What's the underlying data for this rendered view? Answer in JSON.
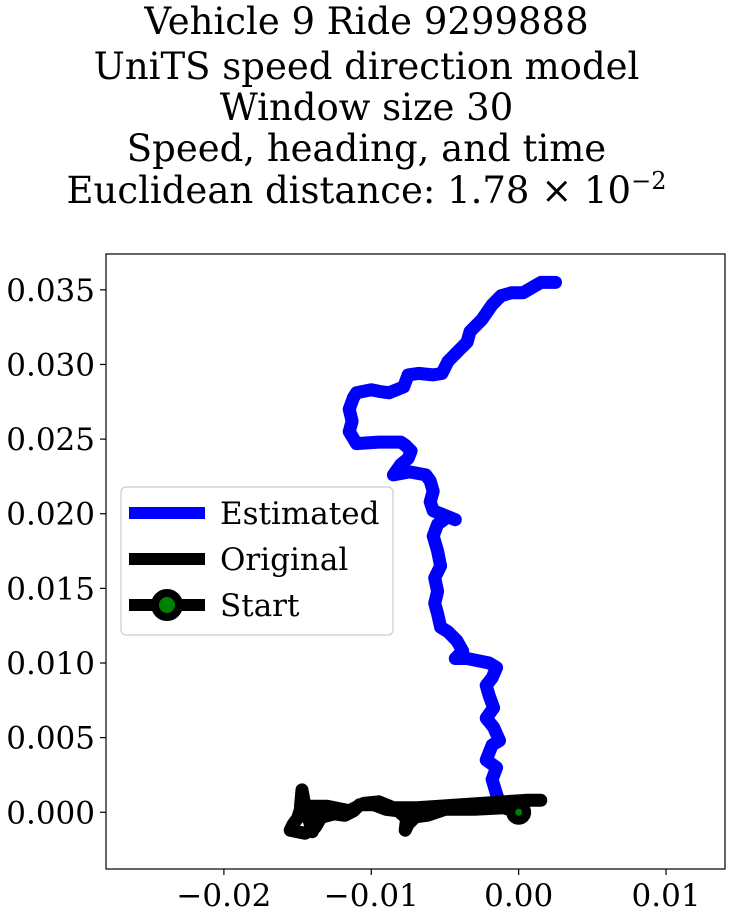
{
  "chart_data": {
    "type": "line",
    "title_lines": [
      "Vehicle 9 Ride 9299888",
      "UniTS speed direction model",
      "Window size 30",
      "Speed, heading, and time",
      "Euclidean distance: 1.78 × 10"
    ],
    "title_exponent": "−2",
    "xlim": [
      -0.028,
      0.014
    ],
    "ylim": [
      -0.0038,
      0.0374
    ],
    "x_ticks": [
      -0.02,
      -0.01,
      0.0,
      0.01
    ],
    "x_tick_labels": [
      "−0.02",
      "−0.01",
      "0.00",
      "0.01"
    ],
    "y_ticks": [
      0.0,
      0.005,
      0.01,
      0.015,
      0.02,
      0.025,
      0.03,
      0.035
    ],
    "y_tick_labels": [
      "0.000",
      "0.005",
      "0.010",
      "0.015",
      "0.020",
      "0.025",
      "0.030",
      "0.035"
    ],
    "grid": false,
    "legend_position": "center-left",
    "legend": [
      "Estimated",
      "Original",
      "Start"
    ],
    "colors": {
      "estimated": "#0000ff",
      "original": "#000000",
      "start_marker": "#008000"
    },
    "series": [
      {
        "name": "Estimated",
        "points": [
          [
            0.0,
            0.0
          ],
          [
            -0.0012,
            0.0004
          ],
          [
            -0.0015,
            0.0012
          ],
          [
            -0.0018,
            0.0022
          ],
          [
            -0.0015,
            0.003
          ],
          [
            -0.0022,
            0.0035
          ],
          [
            -0.0018,
            0.0045
          ],
          [
            -0.0013,
            0.0048
          ],
          [
            -0.0017,
            0.0057
          ],
          [
            -0.0022,
            0.0063
          ],
          [
            -0.0017,
            0.007
          ],
          [
            -0.002,
            0.0078
          ],
          [
            -0.0022,
            0.0085
          ],
          [
            -0.0018,
            0.009
          ],
          [
            -0.0015,
            0.0097
          ],
          [
            -0.002,
            0.01
          ],
          [
            -0.0035,
            0.0103
          ],
          [
            -0.0043,
            0.0103
          ],
          [
            -0.0038,
            0.0108
          ],
          [
            -0.0042,
            0.0115
          ],
          [
            -0.0048,
            0.0121
          ],
          [
            -0.0053,
            0.0124
          ],
          [
            -0.0055,
            0.0133
          ],
          [
            -0.0057,
            0.014
          ],
          [
            -0.0055,
            0.0148
          ],
          [
            -0.0057,
            0.0157
          ],
          [
            -0.0053,
            0.0165
          ],
          [
            -0.0055,
            0.0175
          ],
          [
            -0.0058,
            0.0185
          ],
          [
            -0.0055,
            0.0193
          ],
          [
            -0.0048,
            0.0198
          ],
          [
            -0.0043,
            0.0196
          ],
          [
            -0.0058,
            0.0202
          ],
          [
            -0.006,
            0.0208
          ],
          [
            -0.0058,
            0.0215
          ],
          [
            -0.006,
            0.0222
          ],
          [
            -0.0063,
            0.0226
          ],
          [
            -0.0074,
            0.0228
          ],
          [
            -0.0085,
            0.0226
          ],
          [
            -0.008,
            0.0233
          ],
          [
            -0.0075,
            0.0237
          ],
          [
            -0.0073,
            0.0242
          ],
          [
            -0.0077,
            0.0246
          ],
          [
            -0.008,
            0.0248
          ],
          [
            -0.0095,
            0.0248
          ],
          [
            -0.011,
            0.0247
          ],
          [
            -0.0115,
            0.0255
          ],
          [
            -0.0113,
            0.0262
          ],
          [
            -0.0115,
            0.027
          ],
          [
            -0.0112,
            0.0278
          ],
          [
            -0.011,
            0.0281
          ],
          [
            -0.01,
            0.0283
          ],
          [
            -0.0095,
            0.0282
          ],
          [
            -0.0088,
            0.0281
          ],
          [
            -0.0078,
            0.0285
          ],
          [
            -0.0075,
            0.0293
          ],
          [
            -0.0068,
            0.0294
          ],
          [
            -0.0058,
            0.0293
          ],
          [
            -0.0052,
            0.0294
          ],
          [
            -0.0048,
            0.0302
          ],
          [
            -0.004,
            0.031
          ],
          [
            -0.0035,
            0.0315
          ],
          [
            -0.0033,
            0.0322
          ],
          [
            -0.0025,
            0.033
          ],
          [
            -0.0018,
            0.034
          ],
          [
            -0.0012,
            0.0346
          ],
          [
            -0.0005,
            0.0348
          ],
          [
            0.0003,
            0.0348
          ],
          [
            0.001,
            0.0352
          ],
          [
            0.0015,
            0.0355
          ],
          [
            0.0025,
            0.0355
          ]
        ]
      },
      {
        "name": "Original",
        "points": [
          [
            0.0,
            0.0
          ],
          [
            -0.001,
            0.0003
          ],
          [
            -0.003,
            0.0002
          ],
          [
            -0.005,
            0.0002
          ],
          [
            -0.0062,
            -0.0002
          ],
          [
            -0.007,
            -0.0003
          ],
          [
            -0.0075,
            -0.0008
          ],
          [
            -0.0077,
            -0.0012
          ],
          [
            -0.0076,
            -0.0004
          ],
          [
            -0.0082,
            0.0001
          ],
          [
            -0.009,
            0.0002
          ],
          [
            -0.0098,
            0.0005
          ],
          [
            -0.0108,
            0.0005
          ],
          [
            -0.0112,
            0.0001
          ],
          [
            -0.0118,
            -0.0002
          ],
          [
            -0.0125,
            -0.0001
          ],
          [
            -0.0133,
            -0.0003
          ],
          [
            -0.0138,
            -0.0007
          ],
          [
            -0.014,
            -0.0013
          ],
          [
            -0.0142,
            -0.0006
          ],
          [
            -0.0145,
            0.0002
          ],
          [
            -0.0148,
            0.0002
          ],
          [
            -0.015,
            -0.0004
          ],
          [
            -0.0153,
            -0.0008
          ],
          [
            -0.0155,
            -0.0012
          ],
          [
            -0.0145,
            -0.0014
          ],
          [
            -0.0138,
            -0.001
          ],
          [
            -0.0135,
            -0.0005
          ],
          [
            -0.0142,
            0.0001
          ],
          [
            -0.0148,
            0.0004
          ],
          [
            -0.0147,
            0.0015
          ],
          [
            -0.0145,
            0.0004
          ],
          [
            -0.013,
            0.0004
          ],
          [
            -0.0115,
            0.0001
          ],
          [
            -0.0105,
            0.0006
          ],
          [
            -0.0095,
            0.0007
          ],
          [
            -0.0085,
            0.0003
          ],
          [
            -0.007,
            0.0003
          ],
          [
            -0.0055,
            0.0004
          ],
          [
            -0.004,
            0.0005
          ],
          [
            -0.0025,
            0.0006
          ],
          [
            -0.001,
            0.0007
          ],
          [
            0.0005,
            0.0008
          ],
          [
            0.0015,
            0.0008
          ]
        ]
      }
    ],
    "start_point": [
      0.0,
      0.0
    ]
  }
}
